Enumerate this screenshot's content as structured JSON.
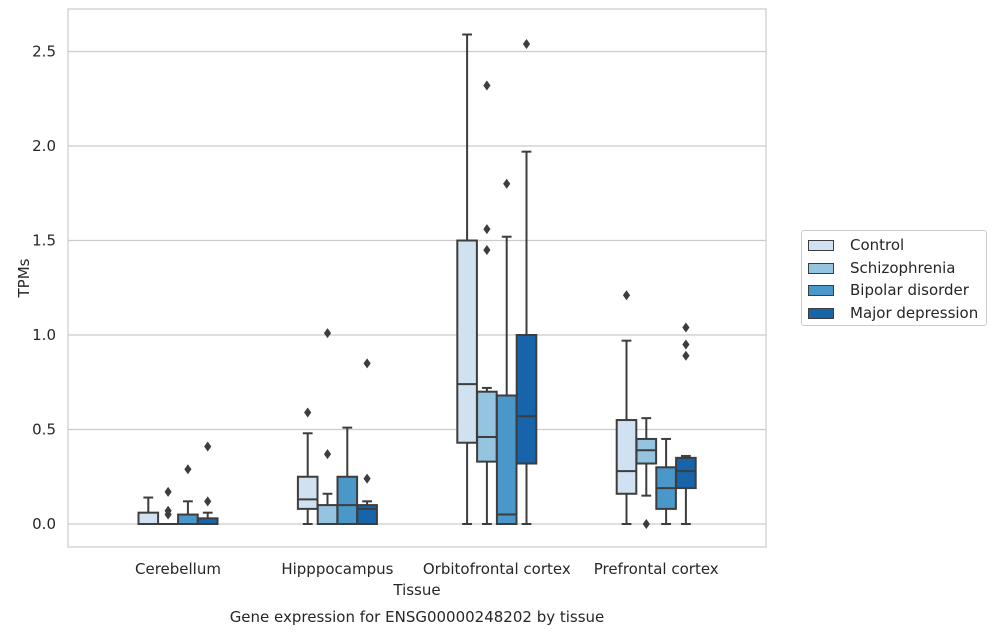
{
  "chart_data": {
    "type": "box",
    "title": "Gene expression for ENSG00000248202 by tissue",
    "xlabel": "Tissue",
    "ylabel": "TPMs",
    "ylim": [
      -0.13,
      2.73
    ],
    "yticks": [
      0.0,
      0.5,
      1.0,
      1.5,
      2.0,
      2.5
    ],
    "ytick_labels": [
      "0.0",
      "0.5",
      "1.0",
      "1.5",
      "2.0",
      "2.5"
    ],
    "grid": "horizontal",
    "legend_position": "right-center",
    "categories": [
      "Cerebellum",
      "Hipppocampus",
      "Orbitofrontal cortex",
      "Prefrontal cortex"
    ],
    "series": [
      {
        "name": "Control",
        "color": "#d0e1f2",
        "boxes": [
          {
            "whislo": 0.0,
            "q1": 0.0,
            "med": 0.0,
            "q3": 0.06,
            "whishi": 0.14,
            "fliers": []
          },
          {
            "whislo": 0.0,
            "q1": 0.08,
            "med": 0.13,
            "q3": 0.25,
            "whishi": 0.48,
            "fliers": [
              0.59
            ]
          },
          {
            "whislo": 0.0,
            "q1": 0.43,
            "med": 0.74,
            "q3": 1.5,
            "whishi": 2.59,
            "fliers": []
          },
          {
            "whislo": 0.0,
            "q1": 0.16,
            "med": 0.28,
            "q3": 0.55,
            "whishi": 0.97,
            "fliers": [
              1.21
            ]
          }
        ]
      },
      {
        "name": "Schizophrenia",
        "color": "#94c4df",
        "boxes": [
          {
            "whislo": 0.0,
            "q1": 0.0,
            "med": 0.0,
            "q3": 0.0,
            "whishi": 0.0,
            "fliers": [
              0.17,
              0.07,
              0.05
            ]
          },
          {
            "whislo": 0.0,
            "q1": 0.0,
            "med": 0.0,
            "q3": 0.1,
            "whishi": 0.16,
            "fliers": [
              1.01,
              0.37
            ]
          },
          {
            "whislo": 0.0,
            "q1": 0.33,
            "med": 0.46,
            "q3": 0.7,
            "whishi": 0.72,
            "fliers": [
              2.32,
              1.56,
              1.45
            ]
          },
          {
            "whislo": 0.15,
            "q1": 0.32,
            "med": 0.39,
            "q3": 0.45,
            "whishi": 0.56,
            "fliers": [
              0.0
            ]
          }
        ]
      },
      {
        "name": "Bipolar disorder",
        "color": "#4a98c9",
        "boxes": [
          {
            "whislo": 0.0,
            "q1": 0.0,
            "med": 0.0,
            "q3": 0.05,
            "whishi": 0.12,
            "fliers": [
              0.29
            ]
          },
          {
            "whislo": 0.0,
            "q1": 0.0,
            "med": 0.1,
            "q3": 0.25,
            "whishi": 0.51,
            "fliers": []
          },
          {
            "whislo": 0.0,
            "q1": 0.0,
            "med": 0.05,
            "q3": 0.68,
            "whishi": 1.52,
            "fliers": [
              1.8
            ]
          },
          {
            "whislo": 0.0,
            "q1": 0.08,
            "med": 0.19,
            "q3": 0.3,
            "whishi": 0.45,
            "fliers": []
          }
        ]
      },
      {
        "name": "Major depression",
        "color": "#1764ab",
        "boxes": [
          {
            "whislo": 0.0,
            "q1": 0.0,
            "med": 0.0,
            "q3": 0.03,
            "whishi": 0.06,
            "fliers": [
              0.41,
              0.12
            ]
          },
          {
            "whislo": 0.0,
            "q1": 0.0,
            "med": 0.08,
            "q3": 0.1,
            "whishi": 0.12,
            "fliers": [
              0.85,
              0.24
            ]
          },
          {
            "whislo": 0.0,
            "q1": 0.32,
            "med": 0.57,
            "q3": 1.0,
            "whishi": 1.97,
            "fliers": [
              2.54
            ]
          },
          {
            "whislo": 0.0,
            "q1": 0.19,
            "med": 0.28,
            "q3": 0.35,
            "whishi": 0.36,
            "fliers": [
              1.04,
              0.95,
              0.89
            ]
          }
        ]
      }
    ]
  }
}
